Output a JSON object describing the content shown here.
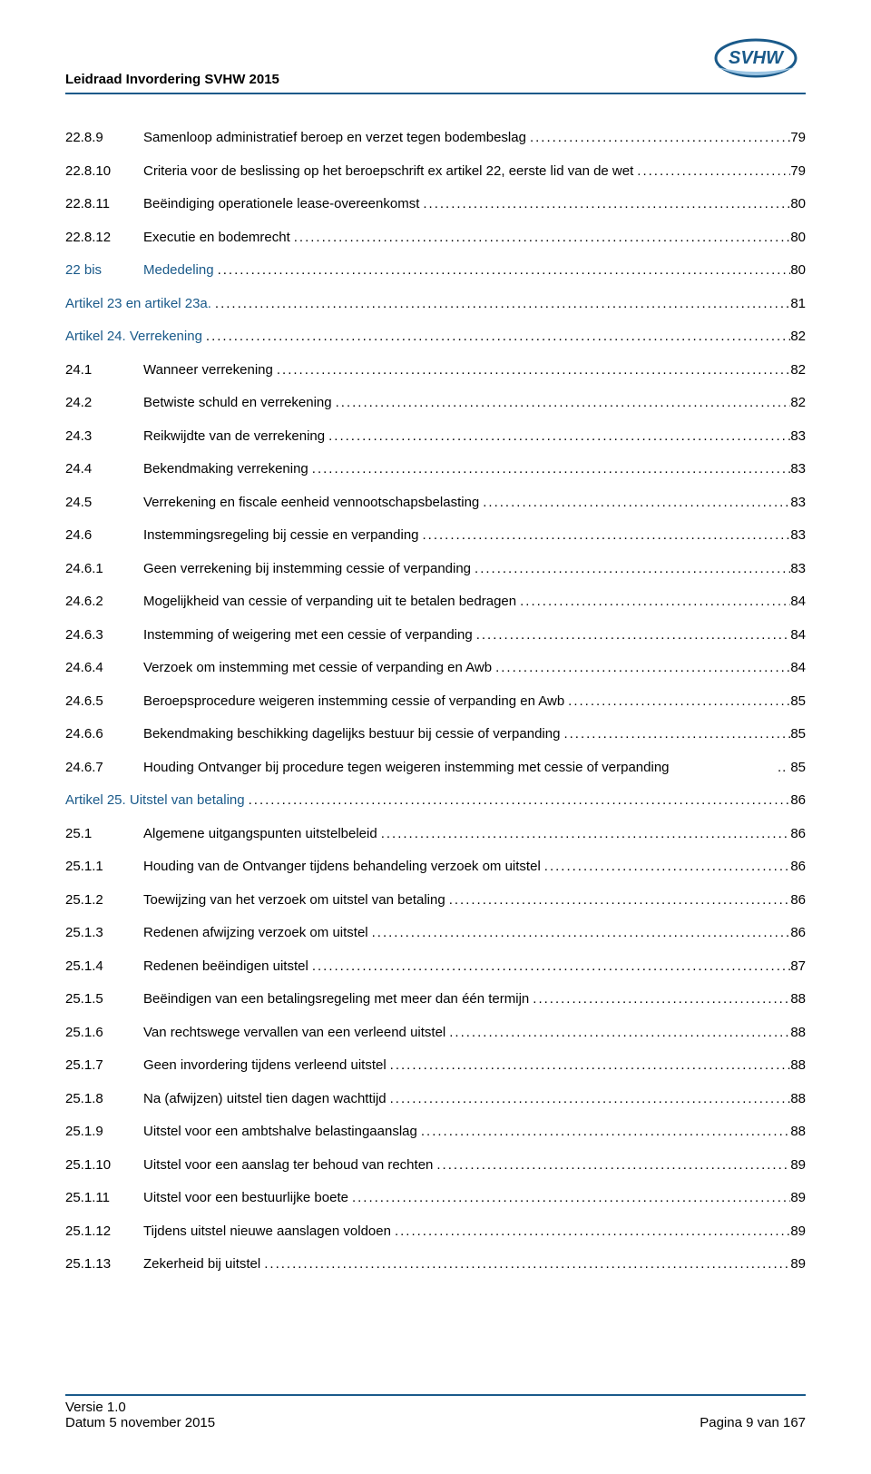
{
  "header": {
    "title": "Leidraad Invordering SVHW 2015",
    "logo_text": "SVHW",
    "logo_text_color": "#1a5a8a",
    "logo_ellipse_stroke": "#1a5a8a",
    "logo_swoosh_color": "#9cc5e3"
  },
  "colors": {
    "rule": "#1a5a8a",
    "link": "#1a5a8a",
    "text": "#000000"
  },
  "toc": [
    {
      "num": "22.8.9",
      "text": "Samenloop administratief beroep en verzet tegen bodembeslag",
      "page": "79"
    },
    {
      "num": "22.8.10",
      "text": "Criteria voor de beslissing op het beroepschrift ex artikel 22, eerste lid van de wet",
      "page": "79"
    },
    {
      "num": "22.8.11",
      "text": "Beëindiging operationele lease-overeenkomst",
      "page": "80"
    },
    {
      "num": "22.8.12",
      "text": "Executie en bodemrecht",
      "page": "80"
    },
    {
      "num": "22 bis",
      "text": "Mededeling",
      "page": "80",
      "heading": true
    },
    {
      "num": "Artikel 23 en artikel 23a.",
      "text": "",
      "page": "81",
      "heading": true,
      "merge": true
    },
    {
      "num": "Artikel 24.",
      "text": "Verrekening",
      "page": "82",
      "heading": true,
      "merge": true
    },
    {
      "num": "24.1",
      "text": "Wanneer verrekening",
      "page": "82"
    },
    {
      "num": "24.2",
      "text": "Betwiste schuld en verrekening",
      "page": "82"
    },
    {
      "num": "24.3",
      "text": "Reikwijdte van de verrekening",
      "page": "83"
    },
    {
      "num": "24.4",
      "text": "Bekendmaking verrekening",
      "page": "83"
    },
    {
      "num": "24.5",
      "text": "Verrekening en fiscale eenheid vennootschapsbelasting",
      "page": "83"
    },
    {
      "num": "24.6",
      "text": "Instemmingsregeling bij cessie en verpanding",
      "page": "83"
    },
    {
      "num": "24.6.1",
      "text": "Geen verrekening bij instemming cessie of verpanding",
      "page": "83"
    },
    {
      "num": "24.6.2",
      "text": "Mogelijkheid van cessie of verpanding uit te betalen bedragen",
      "page": "84"
    },
    {
      "num": "24.6.3",
      "text": "Instemming of weigering met een cessie of verpanding",
      "page": "84"
    },
    {
      "num": "24.6.4",
      "text": "Verzoek om instemming met cessie of verpanding en Awb",
      "page": "84"
    },
    {
      "num": "24.6.5",
      "text": "Beroepsprocedure weigeren instemming cessie of verpanding en Awb",
      "page": "85"
    },
    {
      "num": "24.6.6",
      "text": "Bekendmaking beschikking dagelijks bestuur bij cessie of verpanding",
      "page": "85"
    },
    {
      "num": "24.6.7",
      "text": "Houding Ontvanger bij procedure tegen weigeren instemming met cessie of verpanding",
      "page": "85",
      "sep": ".."
    },
    {
      "num": "Artikel 25.",
      "text": "Uitstel van betaling",
      "page": "86",
      "heading": true,
      "merge": true
    },
    {
      "num": "25.1",
      "text": "Algemene uitgangspunten uitstelbeleid",
      "page": "86"
    },
    {
      "num": "25.1.1",
      "text": "Houding van de Ontvanger tijdens behandeling verzoek om uitstel",
      "page": "86"
    },
    {
      "num": "25.1.2",
      "text": "Toewijzing van het verzoek om uitstel van betaling",
      "page": "86"
    },
    {
      "num": "25.1.3",
      "text": "Redenen afwijzing verzoek om uitstel",
      "page": "86"
    },
    {
      "num": "25.1.4",
      "text": "Redenen beëindigen uitstel",
      "page": "87"
    },
    {
      "num": "25.1.5",
      "text": "Beëindigen van een betalingsregeling met meer dan één termijn",
      "page": "88"
    },
    {
      "num": "25.1.6",
      "text": "Van rechtswege vervallen van een verleend uitstel",
      "page": "88"
    },
    {
      "num": "25.1.7",
      "text": "Geen invordering tijdens verleend uitstel",
      "page": "88"
    },
    {
      "num": "25.1.8",
      "text": "Na (afwijzen) uitstel tien dagen wachttijd",
      "page": "88"
    },
    {
      "num": "25.1.9",
      "text": "Uitstel voor een ambtshalve belastingaanslag",
      "page": "88"
    },
    {
      "num": "25.1.10",
      "text": "Uitstel voor een aanslag ter behoud van rechten",
      "page": "89"
    },
    {
      "num": "25.1.11",
      "text": "Uitstel voor een bestuurlijke boete",
      "page": "89"
    },
    {
      "num": "25.1.12",
      "text": "Tijdens uitstel nieuwe aanslagen voldoen",
      "page": "89"
    },
    {
      "num": "25.1.13",
      "text": "Zekerheid bij uitstel",
      "page": "89"
    }
  ],
  "footer": {
    "version": "Versie 1.0",
    "date": "Datum 5 november 2015",
    "page_label": "Pagina 9 van 167"
  }
}
